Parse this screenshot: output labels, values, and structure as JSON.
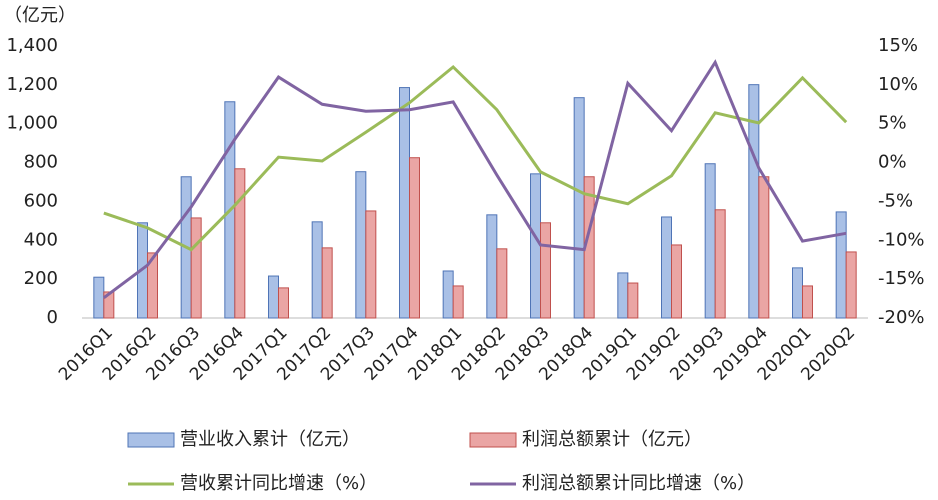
{
  "chart_data": {
    "type": "bar",
    "y_axis_label": "（亿元）",
    "categories": [
      "2016Q1",
      "2016Q2",
      "2016Q3",
      "2016Q4",
      "2017Q1",
      "2017Q2",
      "2017Q3",
      "2017Q4",
      "2018Q1",
      "2018Q2",
      "2018Q3",
      "2018Q4",
      "2019Q1",
      "2019Q2",
      "2019Q3",
      "2019Q4",
      "2020Q1",
      "2020Q2"
    ],
    "ylim": [
      0,
      1400
    ],
    "yticks": [
      0,
      200,
      400,
      600,
      800,
      {
        "value": 1000,
        "label": "1,000"
      },
      {
        "value": 1200,
        "label": "1,200"
      },
      {
        "value": 1400,
        "label": "1,400"
      }
    ],
    "y2lim": [
      -20,
      15
    ],
    "y2ticks": [
      {
        "value": -20,
        "label": "-20%"
      },
      {
        "value": -15,
        "label": "-15%"
      },
      {
        "value": -10,
        "label": "-10%"
      },
      {
        "value": -5,
        "label": "-5%"
      },
      {
        "value": 0,
        "label": "0%"
      },
      {
        "value": 5,
        "label": "5%"
      },
      {
        "value": 10,
        "label": "10%"
      },
      {
        "value": 15,
        "label": "15%"
      }
    ],
    "grid": false,
    "legend_position": "bottom",
    "series": [
      {
        "name": "营业收入累计（亿元）",
        "type": "bar",
        "color": "#a9c0e6",
        "values": [
          210,
          490,
          727,
          1113,
          216,
          495,
          753,
          1186,
          242,
          531,
          742,
          1134,
          232,
          520,
          794,
          1201,
          258,
          546
        ]
      },
      {
        "name": "利润总额累计（亿元）",
        "type": "bar",
        "color": "#eaa5a4",
        "values": [
          134,
          335,
          515,
          768,
          155,
          361,
          551,
          825,
          165,
          356,
          490,
          727,
          180,
          376,
          557,
          727,
          165,
          340
        ]
      },
      {
        "name": "营收累计同比增速（%）",
        "type": "line",
        "axis": "y2",
        "color": "#9bbb59",
        "values": [
          -6.5,
          -8.4,
          -11.2,
          -5.5,
          0.7,
          0.2,
          3.9,
          7.7,
          12.3,
          6.8,
          -1.2,
          -4.0,
          -5.3,
          -1.7,
          6.4,
          5.1,
          10.9,
          5.2
        ]
      },
      {
        "name": "利润总额累计同比增速（%）",
        "type": "line",
        "axis": "y2",
        "color": "#8064a2",
        "values": [
          -17.4,
          -13.2,
          -5.7,
          3.0,
          11.0,
          7.5,
          6.6,
          6.8,
          7.8,
          -1.6,
          -10.6,
          -11.2,
          10.2,
          4.1,
          12.9,
          -0.7,
          -10.1,
          -9.1
        ]
      }
    ]
  }
}
